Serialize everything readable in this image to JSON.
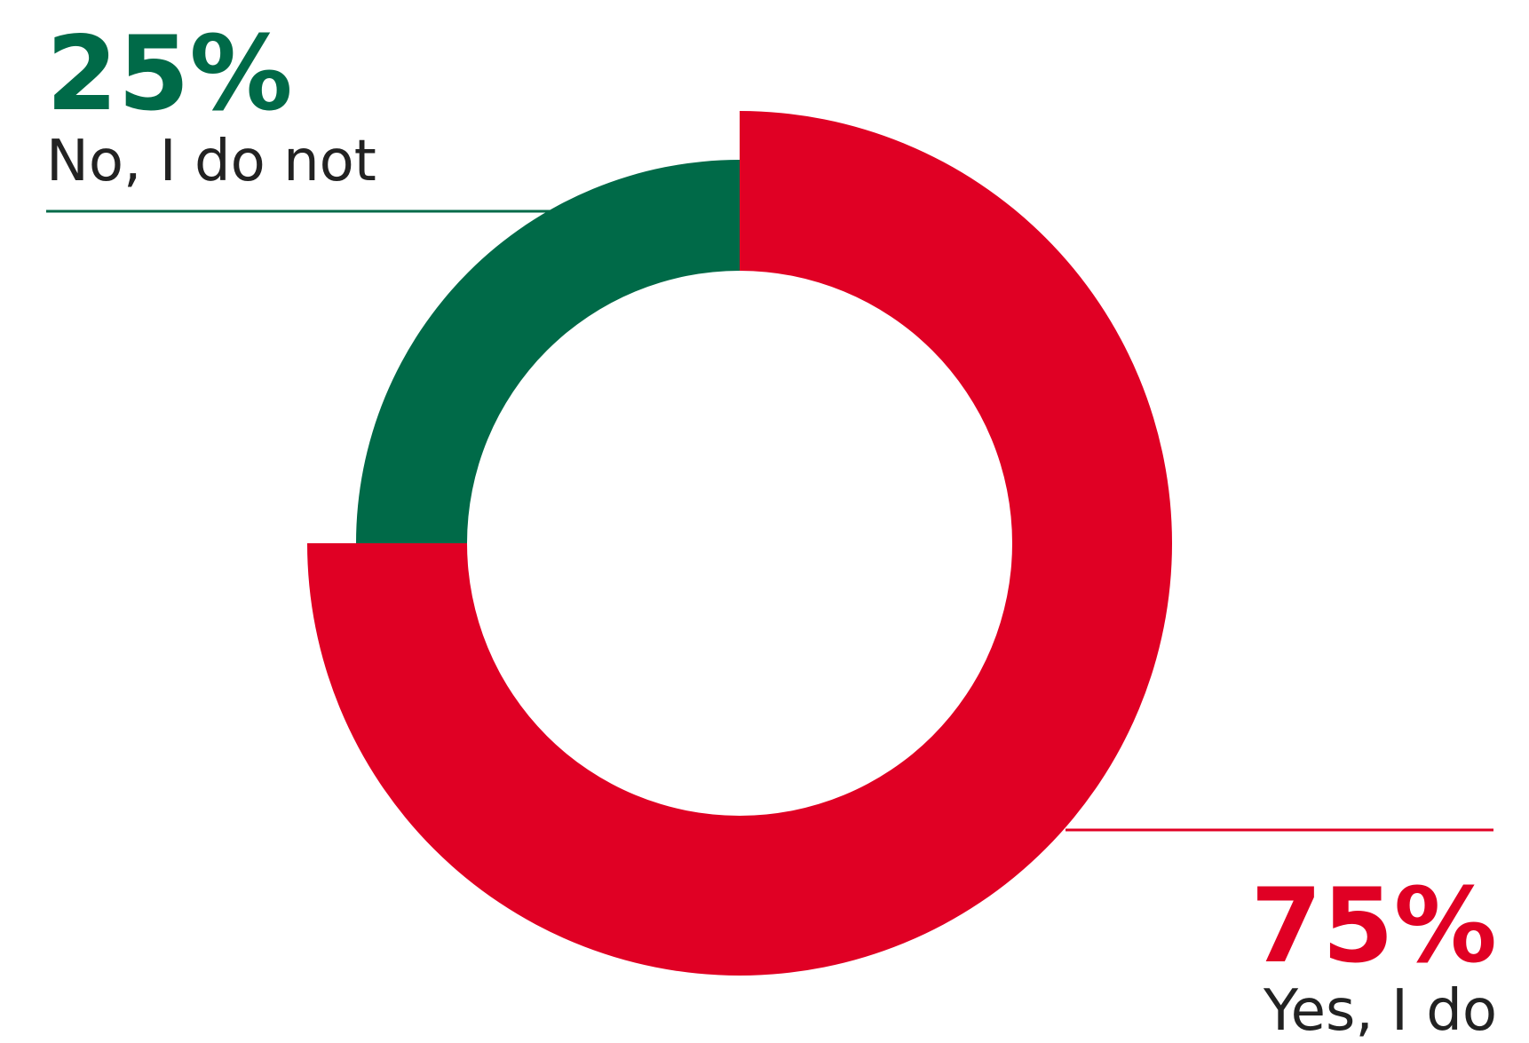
{
  "chart_data": {
    "type": "pie",
    "donut": true,
    "title": "",
    "slices": [
      {
        "label": "Yes, I do",
        "value": 75,
        "display": "75%",
        "color": "#e00024"
      },
      {
        "label": "No, I do not",
        "value": 25,
        "display": "25%",
        "color": "#006a48"
      }
    ],
    "label_text_color": "#222222",
    "legend": "none"
  }
}
